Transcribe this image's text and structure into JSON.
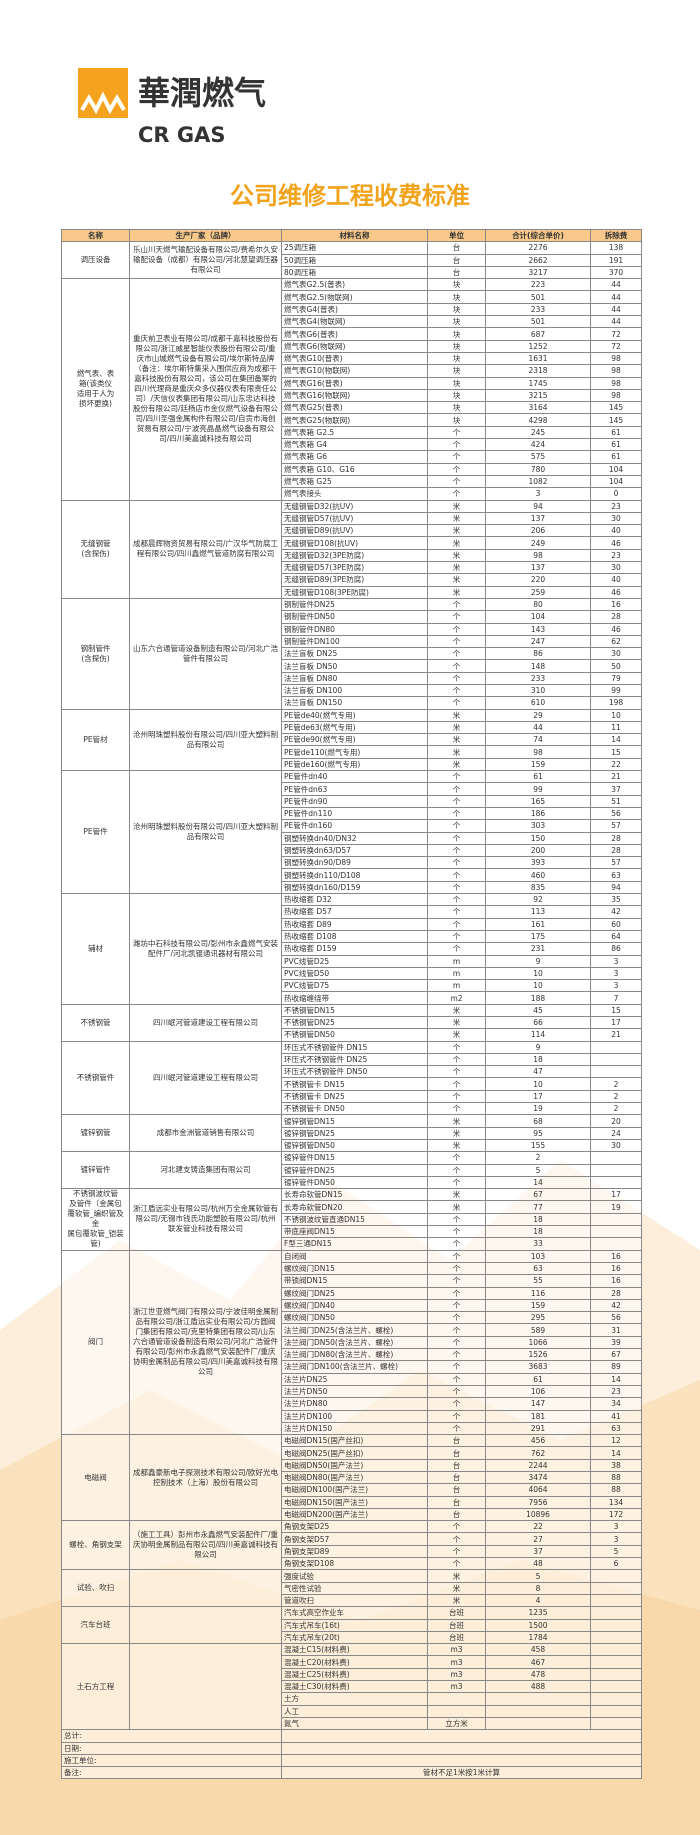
{
  "header": {
    "logo_cn": "華潤燃气",
    "logo_en": "CR GAS",
    "title": "公司维修工程收费标准"
  },
  "table": {
    "columns": [
      "名称",
      "生产厂家（品牌）",
      "材料名称",
      "单位",
      "合计(综合单价)",
      "拆除费"
    ],
    "groups": [
      {
        "name": [
          "调压设备"
        ],
        "maker": "乐山川天燃气输配设备有限公司/费希尔久安输配设备（成都）有限公司/河北慧望调压器有限公司",
        "items": [
          [
            "25调压箱",
            "台",
            2276,
            138
          ],
          [
            "50调压箱",
            "台",
            2662,
            191
          ],
          [
            "80调压箱",
            "台",
            3217,
            370
          ]
        ]
      },
      {
        "name": [
          "燃气表、表",
          "箱(该类仪",
          "适用于人为",
          "损坏更换)"
        ],
        "maker": "重庆前卫表业有限公司/成都千嘉科技股份有限公司/浙江威星智能仪表股份有限公司/重庆市山城燃气设备有限公司/埃尔斯特品牌（备注：埃尔斯特集采入围供应商为成都千嘉科技股份有限公司，该公司在集团备案的四川代理商是重庆众多仪器仪表有限责任公司）/天信仪表集团有限公司/山东忠达科技股份有限公司/廷杨店市金仪燃气设备有限公司/四川圣强金属构件有限公司/自贡市海创贸易有限公司/宁波亮晶晶燃气设备有限公司/四川美嘉诚科技有限公司",
        "items": [
          [
            "燃气表G2.5(普表)",
            "块",
            223,
            44
          ],
          [
            "燃气表G2.5(物联网)",
            "块",
            501,
            44
          ],
          [
            "燃气表G4(普表)",
            "块",
            233,
            44
          ],
          [
            "燃气表G4(物联网)",
            "块",
            501,
            44
          ],
          [
            "燃气表G6(普表)",
            "块",
            687,
            72
          ],
          [
            "燃气表G6(物联网)",
            "块",
            1252,
            72
          ],
          [
            "燃气表G10(普表)",
            "块",
            1631,
            98
          ],
          [
            "燃气表G10(物联网)",
            "块",
            2318,
            98
          ],
          [
            "燃气表G16(普表)",
            "块",
            1745,
            98
          ],
          [
            "燃气表G16(物联网)",
            "块",
            3215,
            98
          ],
          [
            "燃气表G25(普表)",
            "块",
            3164,
            145
          ],
          [
            "燃气表G25(物联网)",
            "块",
            4298,
            145
          ],
          [
            "燃气表箱 G2.5",
            "个",
            245,
            61
          ],
          [
            "燃气表箱 G4",
            "个",
            424,
            61
          ],
          [
            "燃气表箱 G6",
            "个",
            575,
            61
          ],
          [
            "燃气表箱 G10、G16",
            "个",
            780,
            104
          ],
          [
            "燃气表箱 G25",
            "个",
            1082,
            104
          ],
          [
            "燃气表接头",
            "个",
            3,
            0
          ]
        ]
      },
      {
        "name": [
          "无缝钢管",
          "(含探伤)"
        ],
        "maker": "成都晨辉物资贸易有限公司/广汉华气防腐工程有限公司/四川鑫燃气管道防腐有限公司",
        "items": [
          [
            "无缝钢管D32(抗UV)",
            "米",
            94,
            23
          ],
          [
            "无缝钢管D57(抗UV)",
            "米",
            137,
            30
          ],
          [
            "无缝钢管D89(抗UV)",
            "米",
            206,
            40
          ],
          [
            "无缝钢管D108(抗UV)",
            "米",
            249,
            46
          ],
          [
            "无缝钢管D32(3PE防腐)",
            "米",
            98,
            23
          ],
          [
            "无缝钢管D57(3PE防腐)",
            "米",
            137,
            30
          ],
          [
            "无缝钢管D89(3PE防腐)",
            "米",
            220,
            40
          ],
          [
            "无缝钢管D108(3PE防腐)",
            "米",
            259,
            46
          ]
        ]
      },
      {
        "name": [
          "钢制管件",
          "(含探伤)"
        ],
        "maker": "山东六合通管道设备制造有限公司/河北广浩管件有限公司",
        "items": [
          [
            "钢制管件DN25",
            "个",
            80,
            16
          ],
          [
            "钢制管件DN50",
            "个",
            104,
            28
          ],
          [
            "钢制管件DN80",
            "个",
            143,
            46
          ],
          [
            "钢制管件DN100",
            "个",
            247,
            62
          ],
          [
            "法兰盲板 DN25",
            "个",
            86,
            30
          ],
          [
            "法兰盲板 DN50",
            "个",
            148,
            50
          ],
          [
            "法兰盲板 DN80",
            "个",
            233,
            79
          ],
          [
            "法兰盲板 DN100",
            "个",
            310,
            99
          ],
          [
            "法兰盲板 DN150",
            "个",
            610,
            198
          ]
        ]
      },
      {
        "name": [
          "PE管材"
        ],
        "maker": "沧州明珠塑料股份有限公司/四川亚大塑料制品有限公司",
        "items": [
          [
            "PE管de40(燃气专用)",
            "米",
            29,
            10
          ],
          [
            "PE管de63(燃气专用)",
            "米",
            44,
            11
          ],
          [
            "PE管de90(燃气专用)",
            "米",
            74,
            14
          ],
          [
            "PE管de110(燃气专用)",
            "米",
            98,
            15
          ],
          [
            "PE管de160(燃气专用)",
            "米",
            159,
            22
          ]
        ]
      },
      {
        "name": [
          "PE管件"
        ],
        "maker": "沧州明珠塑料股份有限公司/四川亚大塑料制品有限公司",
        "items": [
          [
            "PE管件dn40",
            "个",
            61,
            21
          ],
          [
            "PE管件dn63",
            "个",
            99,
            37
          ],
          [
            "PE管件dn90",
            "个",
            165,
            51
          ],
          [
            "PE管件dn110",
            "个",
            186,
            56
          ],
          [
            "PE管件dn160",
            "个",
            303,
            57
          ],
          [
            "钢塑转换dn40/DN32",
            "个",
            150,
            28
          ],
          [
            "钢塑转换dn63/D57",
            "个",
            200,
            28
          ],
          [
            "钢塑转换dn90/D89",
            "个",
            393,
            57
          ],
          [
            "钢塑转换dn110/D108",
            "个",
            460,
            63
          ],
          [
            "钢塑转换dn160/D159",
            "个",
            835,
            94
          ]
        ]
      },
      {
        "name": [
          "辅材"
        ],
        "maker": "潍坊中石科技有限公司/彭州市永鑫燃气安装配件厂/河北凯锟通讯器材有限公司",
        "items": [
          [
            "热收缩套 D32",
            "个",
            92,
            35
          ],
          [
            "热收缩套 D57",
            "个",
            113,
            42
          ],
          [
            "热收缩套 D89",
            "个",
            161,
            60
          ],
          [
            "热收缩套 D108",
            "个",
            175,
            64
          ],
          [
            "热收缩套 D159",
            "个",
            231,
            86
          ],
          [
            "PVC线管D25",
            "m",
            9,
            3
          ],
          [
            "PVC线管D50",
            "m",
            10,
            3
          ],
          [
            "PVC线管D75",
            "m",
            10,
            3
          ],
          [
            "热收缩缠绕带",
            "m2",
            188,
            7
          ]
        ]
      },
      {
        "name": [
          "不锈钢管"
        ],
        "maker": "四川岷河管道建设工程有限公司",
        "items": [
          [
            "不锈钢管DN15",
            "米",
            45,
            15
          ],
          [
            "不锈钢管DN25",
            "米",
            66,
            17
          ],
          [
            "不锈钢管DN50",
            "米",
            114,
            21
          ]
        ]
      },
      {
        "name": [
          "不锈钢管件"
        ],
        "maker": "四川岷河管道建设工程有限公司",
        "items": [
          [
            "环压式不锈钢管件 DN15",
            "个",
            9,
            null
          ],
          [
            "环压式不锈钢管件 DN25",
            "个",
            18,
            null
          ],
          [
            "环压式不锈钢管件 DN50",
            "个",
            47,
            null
          ],
          [
            "不锈钢管卡 DN15",
            "个",
            10,
            2
          ],
          [
            "不锈钢管卡 DN25",
            "个",
            17,
            2
          ],
          [
            "不锈钢管卡 DN50",
            "个",
            19,
            2
          ]
        ]
      },
      {
        "name": [
          "镀锌钢管"
        ],
        "maker": "成都市金洲管道销售有限公司",
        "items": [
          [
            "镀锌钢管DN15",
            "米",
            68,
            20
          ],
          [
            "镀锌钢管DN25",
            "米",
            95,
            24
          ],
          [
            "镀锌钢管DN50",
            "米",
            155,
            30
          ]
        ]
      },
      {
        "name": [
          "镀锌管件"
        ],
        "maker": "河北建支铸造集团有限公司",
        "items": [
          [
            "镀锌管件DN15",
            "个",
            2,
            null
          ],
          [
            "镀锌管件DN25",
            "个",
            5,
            null
          ],
          [
            "镀锌管件DN50",
            "个",
            14,
            null
          ]
        ]
      },
      {
        "name": [
          "不锈钢波纹管",
          "及管件（金属包",
          "覆软管_编织管及金",
          "属包覆软管_铠装管)"
        ],
        "maker": "浙江盾远实业有限公司/杭州万全金属软管有限公司/无锡市钱氏功能塑胶有限公司/杭州联发管业科技有限公司",
        "items": [
          [
            "长寿命软管DN15",
            "米",
            67,
            17
          ],
          [
            "长寿命软管DN20",
            "米",
            77,
            19
          ],
          [
            "不锈钢波纹管直通DN15",
            "个",
            18,
            null
          ],
          [
            "带底座阀DN15",
            "个",
            18,
            null
          ],
          [
            "F型三通DN15",
            "个",
            33,
            null
          ]
        ]
      },
      {
        "name": [
          "阀门"
        ],
        "maker": "浙江世亚燃气阀门有限公司/宁波佳明金属制品有限公司/浙江盾远实业有限公司/方圆阀门集团有限公司/克里特集团有限公司/山东六合通管道设备制造有限公司/河北广浩管件有限公司/彭州市永鑫燃气安装配件厂/重庆协明金属制品有限公司/四川美嘉诚科技有限公司",
        "items": [
          [
            "自闭阀",
            "个",
            103,
            16
          ],
          [
            "螺纹阀门DN15",
            "个",
            63,
            16
          ],
          [
            "带锁阀DN15",
            "个",
            55,
            16
          ],
          [
            "螺纹阀门DN25",
            "个",
            116,
            28
          ],
          [
            "螺纹阀门DN40",
            "个",
            159,
            42
          ],
          [
            "螺纹阀门DN50",
            "个",
            295,
            56
          ],
          [
            "法兰阀门DN25(含法兰片、螺栓)",
            "个",
            589,
            31
          ],
          [
            "法兰阀门DN50(含法兰片、螺栓)",
            "个",
            1066,
            39
          ],
          [
            "法兰阀门DN80(含法兰片、螺栓)",
            "个",
            1526,
            67
          ],
          [
            "法兰阀门DN100(含法兰片、螺栓)",
            "个",
            3683,
            89
          ],
          [
            "法兰片DN25",
            "个",
            61,
            14
          ],
          [
            "法兰片DN50",
            "个",
            106,
            23
          ],
          [
            "法兰片DN80",
            "个",
            147,
            34
          ],
          [
            "法兰片DN100",
            "个",
            181,
            41
          ],
          [
            "法兰片DN150",
            "个",
            291,
            63
          ]
        ]
      },
      {
        "name": [
          "电磁阀"
        ],
        "maker": "成都鑫豪新电子探测技术有限公司/欧好光电控制技术（上海）股份有限公司",
        "items": [
          [
            "电磁阀DN15(国产丝扣)",
            "台",
            456,
            12
          ],
          [
            "电磁阀DN25(国产丝扣)",
            "台",
            762,
            14
          ],
          [
            "电磁阀DN50(国产法兰)",
            "台",
            2244,
            38
          ],
          [
            "电磁阀DN80(国产法兰)",
            "台",
            3474,
            88
          ],
          [
            "电磁阀DN100(国产法兰)",
            "台",
            4064,
            88
          ],
          [
            "电磁阀DN150(国产法兰)",
            "台",
            7956,
            134
          ],
          [
            "电磁阀DN200(国产法兰)",
            "台",
            10896,
            172
          ]
        ]
      },
      {
        "name": [
          "螺栓、角钢支架"
        ],
        "maker": "（施工工具）彭州市永鑫燃气安装配件厂/重庆协明金属制品有限公司/四川美嘉诚科技有限公司",
        "items": [
          [
            "角钢支架D25",
            "个",
            22,
            3
          ],
          [
            "角钢支架D57",
            "个",
            27,
            3
          ],
          [
            "角钢支架D89",
            "个",
            37,
            5
          ],
          [
            "角钢支架D108",
            "个",
            48,
            6
          ]
        ]
      },
      {
        "name": [
          "试验、吹扫"
        ],
        "maker": null,
        "items": [
          [
            "强度试验",
            "米",
            5,
            null
          ],
          [
            "气密性试验",
            "米",
            8,
            null
          ],
          [
            "管道吹扫",
            "米",
            4,
            null
          ]
        ]
      },
      {
        "name": [
          "汽车台班"
        ],
        "maker": null,
        "items": [
          [
            "汽车式高空作业车",
            "台班",
            1235,
            null
          ],
          [
            "汽车式吊车(16t)",
            "台班",
            1500,
            null
          ],
          [
            "汽车式吊车(20t)",
            "台班",
            1784,
            null
          ]
        ]
      },
      {
        "name": [
          "土石方工程"
        ],
        "maker": null,
        "items": [
          [
            "混凝土C15(材料费)",
            "m3",
            458,
            null
          ],
          [
            "混凝土C20(材料费)",
            "m3",
            467,
            null
          ],
          [
            "混凝土C25(材料费)",
            "m3",
            478,
            null
          ],
          [
            "混凝土C30(材料费)",
            "m3",
            488,
            null
          ],
          [
            "土方",
            null,
            null,
            null
          ],
          [
            "人工",
            null,
            null,
            null
          ],
          [
            "氮气",
            "立方米",
            null,
            null
          ]
        ]
      }
    ],
    "footer": [
      [
        "总计:",
        null
      ],
      [
        "日期:",
        null
      ],
      [
        "施工单位:",
        null
      ],
      [
        "备注:",
        "管材不足1米按1米计算"
      ]
    ]
  }
}
